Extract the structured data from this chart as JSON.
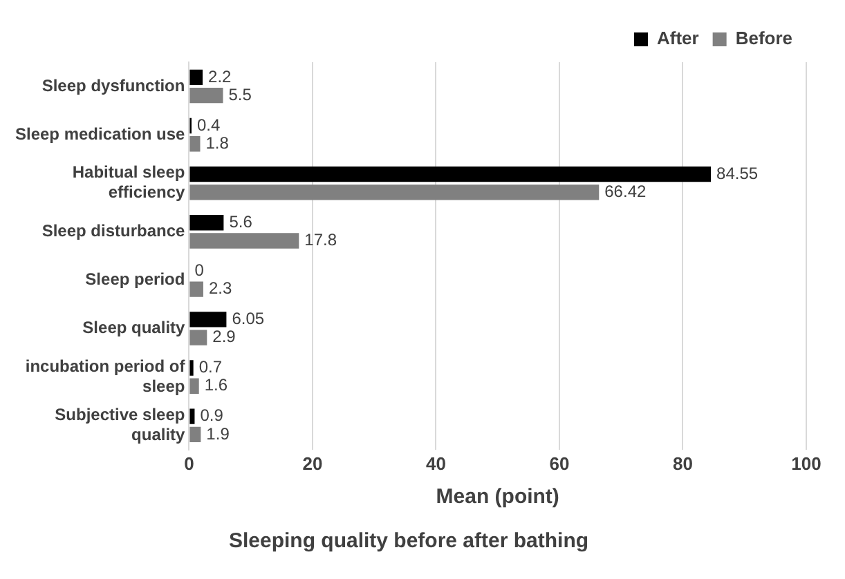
{
  "chart_data": {
    "type": "bar",
    "orientation": "horizontal",
    "title": "Sleeping quality before after bathing",
    "xlabel": "Mean (point)",
    "categories": [
      "Sleep dysfunction",
      "Sleep medication use",
      "Habitual sleep efficiency",
      "Sleep disturbance",
      "Sleep period",
      "Sleep quality",
      "incubation period of sleep",
      "Subjective sleep quality"
    ],
    "series": [
      {
        "name": "After",
        "color": "#000000",
        "values": [
          2.2,
          0.4,
          84.55,
          5.6,
          0,
          6.05,
          0.7,
          0.9
        ]
      },
      {
        "name": "Before",
        "color": "#808080",
        "values": [
          5.5,
          1.8,
          66.42,
          17.8,
          2.3,
          2.9,
          1.6,
          1.9
        ]
      }
    ],
    "xlim": [
      0,
      100
    ],
    "xticks": [
      0,
      20,
      40,
      60,
      80,
      100
    ],
    "grid": "x",
    "legend": "top right",
    "data_labels": true
  }
}
